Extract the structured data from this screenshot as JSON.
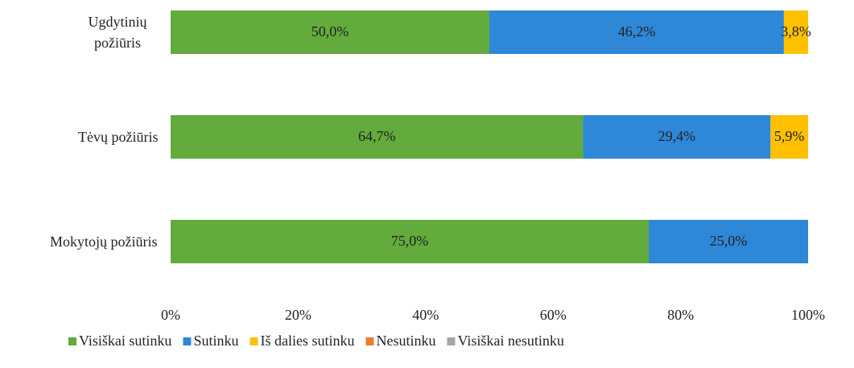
{
  "chart_data": {
    "type": "stacked_barh",
    "categories": [
      "Ugdytinių požiūris",
      "Tėvų požiūris",
      "Mokytojų požiūris"
    ],
    "series": [
      {
        "name": "Visiškai sutinku",
        "color": "#62ab3c",
        "values": [
          50.0,
          64.7,
          75.0
        ],
        "value_labels": [
          "50,0%",
          "64,7%",
          "75,0%"
        ]
      },
      {
        "name": "Sutinku",
        "color": "#2f87d8",
        "values": [
          46.2,
          29.4,
          25.0
        ],
        "value_labels": [
          "46,2%",
          "29,4%",
          "25,0%"
        ]
      },
      {
        "name": "Iš dalies sutinku",
        "color": "#ffc000",
        "values": [
          3.8,
          5.9,
          0
        ],
        "value_labels": [
          "3,8%",
          "5,9%",
          null
        ]
      },
      {
        "name": "Nesutinku",
        "color": "#ed7d31",
        "values": [
          0,
          0,
          0
        ],
        "value_labels": [
          null,
          null,
          null
        ]
      },
      {
        "name": "Visiškai nesutinku",
        "color": "#a5a5a5",
        "values": [
          0,
          0,
          0
        ],
        "value_labels": [
          null,
          null,
          null
        ]
      }
    ],
    "xlim": [
      0,
      100
    ],
    "xticks": [
      {
        "value": 0,
        "label": "0%"
      },
      {
        "value": 20,
        "label": "20%"
      },
      {
        "value": 40,
        "label": "40%"
      },
      {
        "value": 60,
        "label": "60%"
      },
      {
        "value": 80,
        "label": "80%"
      },
      {
        "value": 100,
        "label": "100%"
      }
    ],
    "legend": "bottom"
  }
}
